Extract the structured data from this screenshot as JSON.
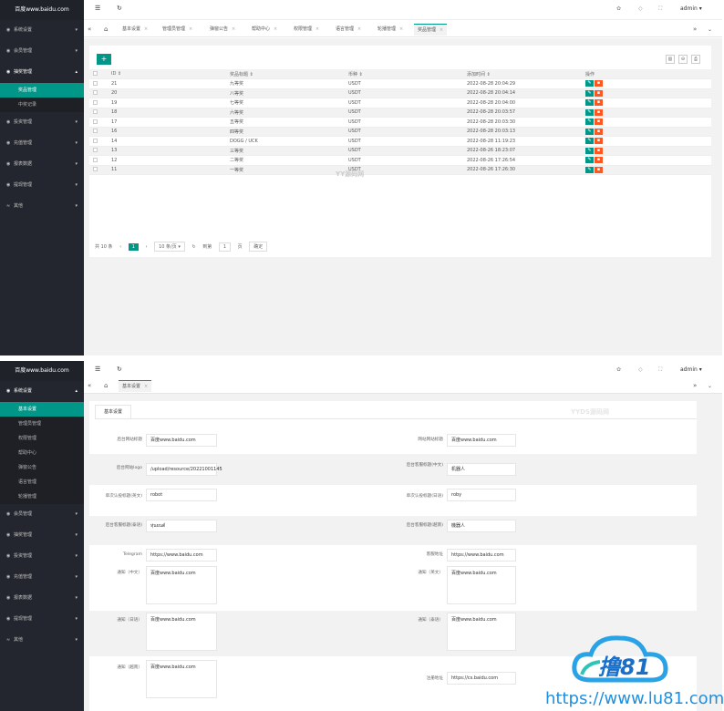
{
  "app": {
    "logo": "百度www.baidu.com",
    "admin": "admin ▾"
  },
  "sidebar_a": {
    "items": [
      {
        "label": "系统设置",
        "arrow": "▾"
      },
      {
        "label": "会员管理",
        "arrow": "▾"
      },
      {
        "label": "抽奖管理",
        "arrow": "▴"
      }
    ],
    "sub": [
      {
        "label": "奖品管理",
        "active": true
      },
      {
        "label": "中奖记录",
        "active": false
      }
    ],
    "items2": [
      {
        "label": "投资管理",
        "arrow": "▾"
      },
      {
        "label": "充值管理",
        "arrow": "▾"
      },
      {
        "label": "报表数据",
        "arrow": "▾"
      },
      {
        "label": "提现管理",
        "arrow": "▾"
      },
      {
        "label": "其他",
        "arrow": "▾"
      }
    ]
  },
  "tabs_a": [
    "基本设置",
    "管理员管理",
    "弹窗公告",
    "帮助中心",
    "权限管理",
    "语言管理",
    "轮播管理",
    "奖品管理"
  ],
  "table": {
    "headers": [
      "ID ⇕",
      "奖品标题 ⇕",
      "币种 ⇕",
      "添加时间 ⇕",
      "操作"
    ],
    "rows": [
      {
        "id": "21",
        "title": "九等奖",
        "coin": "USDT",
        "time": "2022-08-28 20:04:29"
      },
      {
        "id": "20",
        "title": "八等奖",
        "coin": "USDT",
        "time": "2022-08-28 20:04:14"
      },
      {
        "id": "19",
        "title": "七等奖",
        "coin": "USDT",
        "time": "2022-08-28 20:04:00"
      },
      {
        "id": "18",
        "title": "六等奖",
        "coin": "USDT",
        "time": "2022-08-28 20:03:57"
      },
      {
        "id": "17",
        "title": "五等奖",
        "coin": "USDT",
        "time": "2022-08-28 20:03:30"
      },
      {
        "id": "16",
        "title": "四等奖",
        "coin": "USDT",
        "time": "2022-08-28 20:03:13"
      },
      {
        "id": "14",
        "title": "DOGG / UCK",
        "coin": "USDT",
        "time": "2022-08-28 11:19:23"
      },
      {
        "id": "13",
        "title": "三等奖",
        "coin": "USDT",
        "time": "2022-08-26 18:23:07"
      },
      {
        "id": "12",
        "title": "二等奖",
        "coin": "USDT",
        "time": "2022-08-26 17:26:54"
      },
      {
        "id": "11",
        "title": "一等奖",
        "coin": "USDT",
        "time": "2022-08-26 17:26:30"
      }
    ]
  },
  "pager": {
    "total": "共 10 条",
    "prev": "‹",
    "page": "1",
    "next": "›",
    "size": "10 条/页 ▾",
    "goto": "到第",
    "goto_val": "1",
    "unit": "页",
    "confirm": "确定"
  },
  "watermark": "YY源码网",
  "sidebar_b": {
    "items": [
      {
        "label": "系统设置",
        "arrow": "▴"
      }
    ],
    "sub": [
      {
        "label": "基本设置",
        "active": true
      },
      {
        "label": "管理员管理",
        "active": false
      },
      {
        "label": "权限管理",
        "active": false
      },
      {
        "label": "帮助中心",
        "active": false
      },
      {
        "label": "弹窗公告",
        "active": false
      },
      {
        "label": "语言管理",
        "active": false
      },
      {
        "label": "轮播管理",
        "active": false
      }
    ],
    "items2": [
      {
        "label": "会员管理",
        "arrow": "▾"
      },
      {
        "label": "抽奖管理",
        "arrow": "▾"
      },
      {
        "label": "投资管理",
        "arrow": "▾"
      },
      {
        "label": "充值管理",
        "arrow": "▾"
      },
      {
        "label": "报表数据",
        "arrow": "▾"
      },
      {
        "label": "提现管理",
        "arrow": "▾"
      },
      {
        "label": "其他",
        "arrow": "▾"
      }
    ]
  },
  "tabs_b": [
    "基本设置"
  ],
  "form": {
    "tab": "基本设置",
    "watermark": "YYDS源码网",
    "rows": [
      {
        "l1": "后台网站标题",
        "v1": "百度www.baidu.com",
        "l2": "网站网站标题",
        "v2": "百度www.baidu.com"
      },
      {
        "l1": "后台网站logo",
        "v1": "/upload/resource/20221001145",
        "l2": "后台客服标题(中文)",
        "v2": "机器人"
      },
      {
        "l1": "单次认投标题(英文)",
        "v1": "robot",
        "l2": "单次认投标题(日语)",
        "v2": "roby"
      },
      {
        "l1": "后台客服标题(泰语)",
        "v1": "หุ่นยนต์",
        "l2": "后台客服标题(越南)",
        "v2": "機器人"
      },
      {
        "l1": "Telegram",
        "v1": "https://www.baidu.com",
        "l2": "客服地址",
        "v2": "https://www.baidu.com"
      },
      {
        "l1": "通知（中文）",
        "v1": "百度www.baidu.com",
        "l2": "通知（英文）",
        "v2": "百度www.baidu.com"
      },
      {
        "l1": "通知（日语）",
        "v1": "百度www.baidu.com",
        "l2": "通知（泰语）",
        "v2": "百度www.baidu.com"
      },
      {
        "l1": "通知（越南）",
        "v1": "百度www.baidu.com",
        "l2": "注册地址",
        "v2": "https://cs.baidu.com"
      }
    ]
  },
  "brand": {
    "name": "撸81",
    "url": "https://www.lu81.com"
  }
}
